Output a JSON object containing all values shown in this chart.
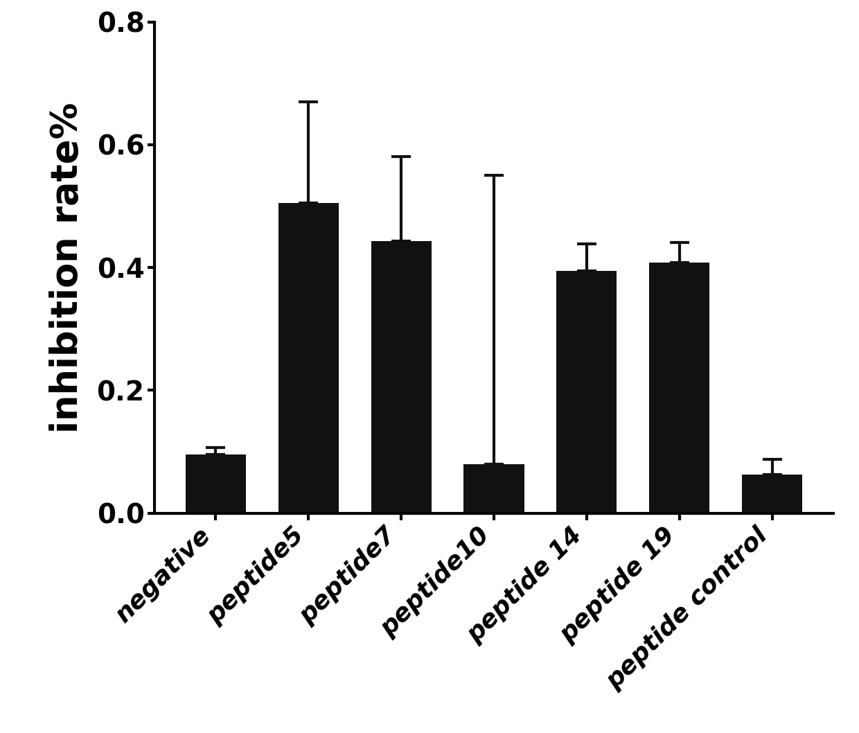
{
  "categories": [
    "negative",
    "peptide5",
    "peptide7",
    "peptide10",
    "peptide 14",
    "peptide 19",
    "peptide control"
  ],
  "values": [
    0.095,
    0.505,
    0.443,
    0.08,
    0.395,
    0.408,
    0.063
  ],
  "errors": [
    0.012,
    0.165,
    0.138,
    0.47,
    0.043,
    0.033,
    0.025
  ],
  "bar_color": "#111111",
  "error_color": "#111111",
  "ylabel": "inhibition rate%",
  "ylim": [
    0.0,
    0.8
  ],
  "yticks": [
    0.0,
    0.2,
    0.4,
    0.6,
    0.8
  ],
  "background_color": "#ffffff",
  "bar_width": 0.65,
  "ylabel_fontsize": 38,
  "tick_fontsize": 28,
  "xlabel_fontsize": 26,
  "capsize": 10,
  "cap_thickness": 3.0,
  "elinewidth": 3.0,
  "spine_linewidth": 3.0
}
